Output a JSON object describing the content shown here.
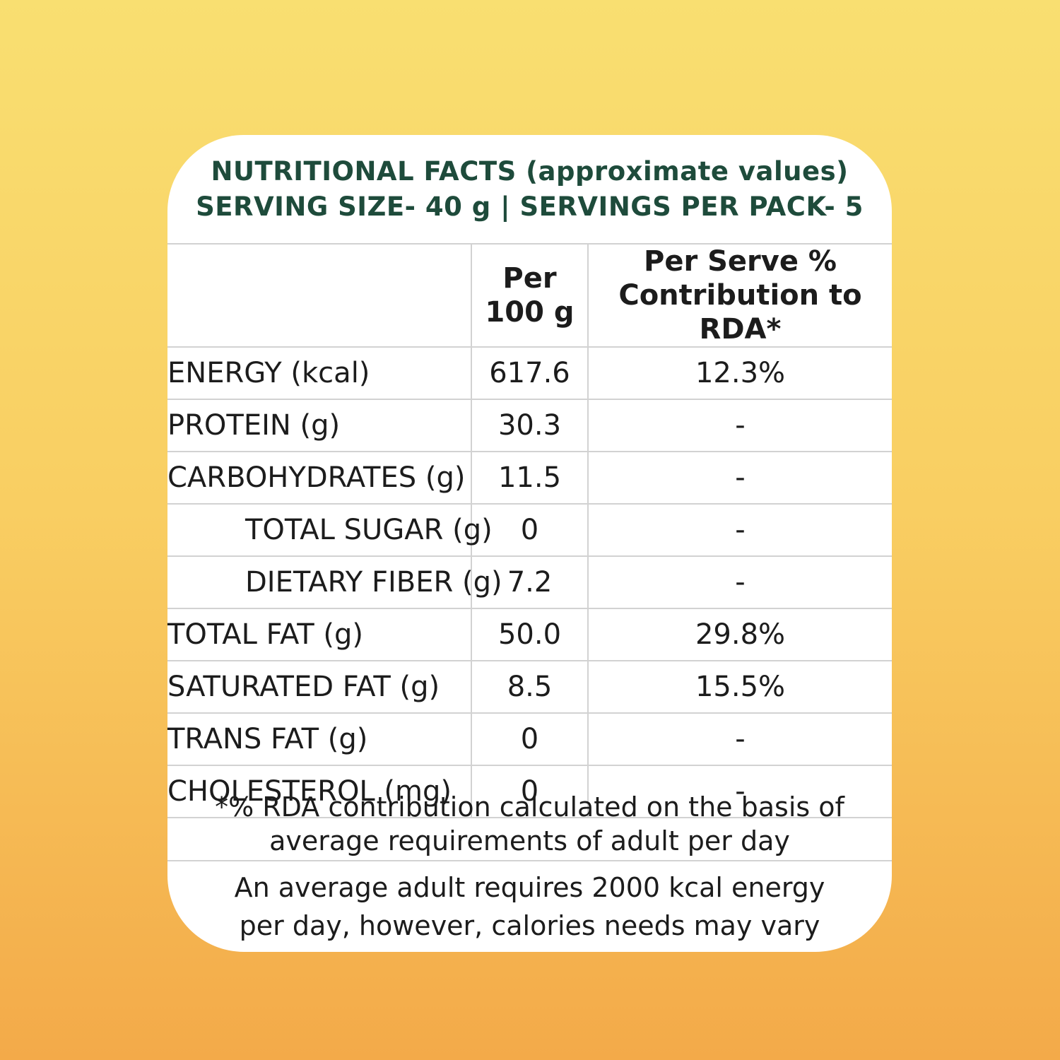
{
  "colors": {
    "background_top": "#F9DF71",
    "background_mid": "#F9CE62",
    "background_bottom": "#F3AA49",
    "card_background": "#FFFFFF",
    "title_green": "#1E4B3B",
    "body_text": "#1C1C1C",
    "grid_line": "#D2D2D2"
  },
  "header": {
    "title": "NUTRITIONAL FACTS (approximate values)",
    "subtitle": "SERVING SIZE- 40 g | SERVINGS PER PACK- 5"
  },
  "table": {
    "header": {
      "col1": "",
      "col2_line1": "Per",
      "col2_line2": "100 g",
      "col3_line1": "Per Serve %",
      "col3_line2": "Contribution to RDA*"
    },
    "rows": [
      {
        "label": "ENERGY (kcal)",
        "per_100g": "617.6",
        "rda_percent": "12.3%",
        "indent": false
      },
      {
        "label": "PROTEIN (g)",
        "per_100g": "30.3",
        "rda_percent": "-",
        "indent": false
      },
      {
        "label": "CARBOHYDRATES (g)",
        "per_100g": "11.5",
        "rda_percent": "-",
        "indent": false
      },
      {
        "label": "TOTAL SUGAR (g)",
        "per_100g": "0",
        "rda_percent": "-",
        "indent": true
      },
      {
        "label": "DIETARY FIBER (g)",
        "per_100g": "7.2",
        "rda_percent": "-",
        "indent": true
      },
      {
        "label": "TOTAL FAT (g)",
        "per_100g": "50.0",
        "rda_percent": "29.8%",
        "indent": false
      },
      {
        "label": "SATURATED FAT (g)",
        "per_100g": "8.5",
        "rda_percent": "15.5%",
        "indent": false
      },
      {
        "label": "TRANS FAT (g)",
        "per_100g": "0",
        "rda_percent": "-",
        "indent": false
      },
      {
        "label": "CHOLESTEROL (mg)",
        "per_100g": "0",
        "rda_percent": "-",
        "indent": false
      }
    ]
  },
  "footnotes": {
    "rda_line1": "*% RDA contribution calculated on the basis of",
    "rda_line2": "average requirements of adult per day",
    "energy_line1": "An average adult requires 2000 kcal energy",
    "energy_line2": "per day, however, calories needs may vary"
  }
}
